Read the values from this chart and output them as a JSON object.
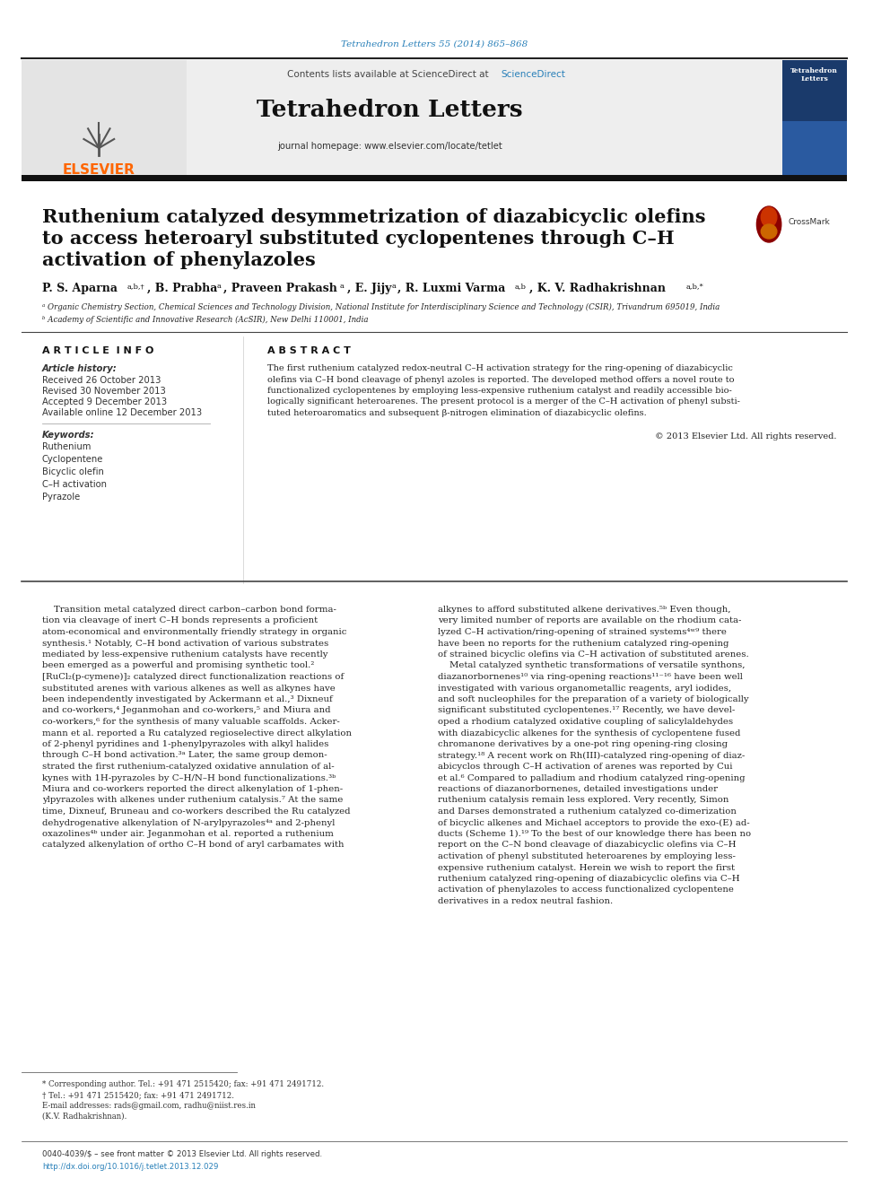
{
  "journal_ref": "Tetrahedron Letters 55 (2014) 865–868",
  "journal_name": "Tetrahedron Letters",
  "journal_homepage": "journal homepage: www.elsevier.com/locate/tetlet",
  "contents_line": "Contents lists available at ScienceDirect",
  "sciencedirect": "ScienceDirect",
  "title_line1": "Ruthenium catalyzed desymmetrization of diazabicyclic olefins",
  "title_line2": "to access heteroaryl substituted cyclopentenes through C–H",
  "title_line3": "activation of phenylazoles",
  "affil_a": "ᵃ Organic Chemistry Section, Chemical Sciences and Technology Division, National Institute for Interdisciplinary Science and Technology (CSIR), Trivandrum 695019, India",
  "affil_b": "ᵇ Academy of Scientific and Innovative Research (AcSIR), New Delhi 110001, India",
  "article_info_label": "A R T I C L E  I N F O",
  "abstract_label": "A B S T R A C T",
  "article_history_label": "Article history:",
  "received": "Received 26 October 2013",
  "revised": "Revised 30 November 2013",
  "accepted": "Accepted 9 December 2013",
  "available": "Available online 12 December 2013",
  "keywords_label": "Keywords:",
  "keywords": [
    "Ruthenium",
    "Cyclopentene",
    "Bicyclic olefin",
    "C–H activation",
    "Pyrazole"
  ],
  "copyright": "© 2013 Elsevier Ltd. All rights reserved.",
  "footnote_corresp": "* Corresponding author. Tel.: +91 471 2515420; fax: +91 471 2491712.",
  "footnote_dagger": "† Tel.: +91 471 2515420; fax: +91 471 2491712.",
  "footnote_email": "E-mail addresses: rads@gmail.com, radhu@niist.res.in",
  "footnote_name": "(K.V. Radhakrishnan).",
  "footer_issn": "0040-4039/$ – see front matter © 2013 Elsevier Ltd. All rights reserved.",
  "footer_doi": "http://dx.doi.org/10.1016/j.tetlet.2013.12.029",
  "bg_color": "#ffffff",
  "elsevier_color": "#ff6600",
  "link_color": "#2980b9",
  "journal_ref_color": "#2980b9"
}
